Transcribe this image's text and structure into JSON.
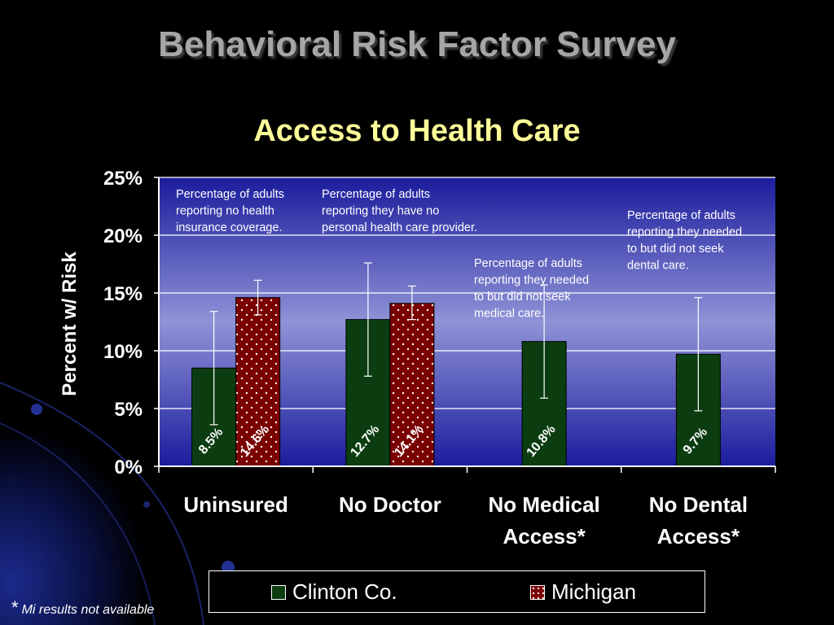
{
  "slide": {
    "title": "Behavioral Risk Factor Survey",
    "subtitle": "Access to Health Care",
    "footnote_marker": "*",
    "footnote_text": "Mi results not available"
  },
  "colors": {
    "clinton": "#0b3d10",
    "michigan": "#7a0000",
    "title": "#a6a6a6",
    "subtitle": "#ffff99"
  },
  "chart_data": {
    "type": "bar",
    "title": "Access to Health Care",
    "ylabel": "Percent w/ Risk",
    "xlabel": "",
    "ylim": [
      0,
      25
    ],
    "yticks": [
      "0%",
      "5%",
      "10%",
      "15%",
      "20%",
      "25%"
    ],
    "ytick_values": [
      0,
      5,
      10,
      15,
      20,
      25
    ],
    "grid": true,
    "legend_position": "bottom",
    "categories": [
      [
        "Uninsured"
      ],
      [
        "No Doctor"
      ],
      [
        "No Medical",
        "Access*"
      ],
      [
        "No Dental",
        "Access*"
      ]
    ],
    "series": [
      {
        "name": "Clinton Co.",
        "values": [
          8.5,
          12.7,
          10.8,
          9.7
        ],
        "labels": [
          "8.5%",
          "12.7%",
          "10.8%",
          "9.7%"
        ],
        "error_low": [
          3.6,
          7.8,
          5.9,
          4.8
        ],
        "error_high": [
          13.4,
          17.6,
          15.7,
          14.6
        ]
      },
      {
        "name": "Michigan",
        "values": [
          14.6,
          14.1,
          null,
          null
        ],
        "labels": [
          "14.6%",
          "14.1%",
          "",
          ""
        ],
        "error_low": [
          13.1,
          12.7,
          null,
          null
        ],
        "error_high": [
          16.1,
          15.6,
          null,
          null
        ]
      }
    ],
    "annotations": [
      [
        "Percentage of adults",
        "reporting no health",
        "insurance coverage."
      ],
      [
        "Percentage of adults",
        "reporting they have no",
        "personal health care provider."
      ],
      [
        "Percentage of adults",
        "reporting they needed",
        "to but did not seek",
        "medical care."
      ],
      [
        "Percentage of adults",
        "reporting they needed",
        "to but did not seek",
        "dental care."
      ]
    ]
  }
}
